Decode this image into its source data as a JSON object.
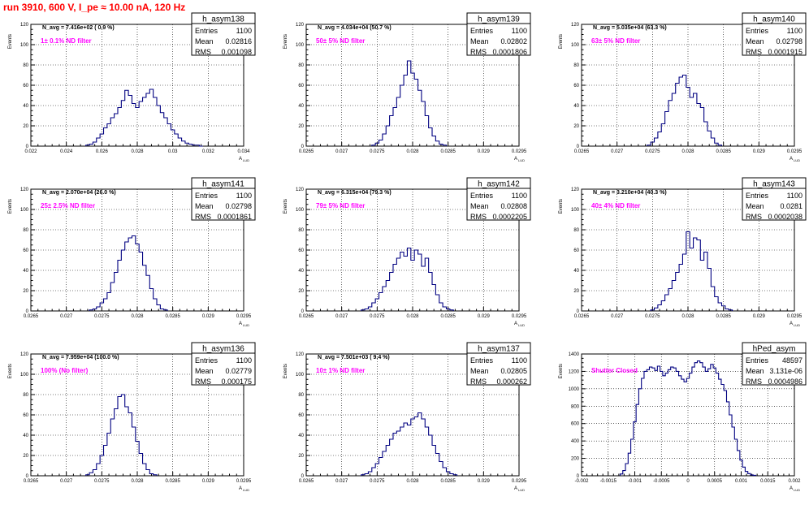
{
  "title": "run 3910,   600 V, I_pe ≈ 10.00 nA, 120 Hz",
  "common": {
    "ylabel": "Events",
    "xlabel": "A",
    "xlabel_sub": "LUD",
    "stat_labels": [
      "Entries",
      "Mean",
      "RMS"
    ],
    "line_color": "#000080",
    "note_color": "#ff00ff",
    "grid": true
  },
  "chart_data": [
    {
      "type": "histogram",
      "name": "h_asym138",
      "navg": "N_avg = 7.416e+02 ( 0.9 %)",
      "filter": "1± 0.1% ND filter",
      "entries": "1100",
      "mean": "0.02816",
      "rms": "0.001098",
      "xlim": [
        0.022,
        0.034
      ],
      "ylim": [
        0,
        120
      ],
      "xticks": [
        "0.022",
        "0.024",
        "0.026",
        "0.028",
        "0.03",
        "0.032",
        "0.034"
      ],
      "yticks": [
        "0",
        "20",
        "40",
        "60",
        "80",
        "100",
        "120"
      ],
      "x": [
        0.0252,
        0.0254,
        0.0256,
        0.0258,
        0.026,
        0.0262,
        0.0264,
        0.0266,
        0.0268,
        0.027,
        0.0272,
        0.0274,
        0.0276,
        0.0278,
        0.028,
        0.0282,
        0.0284,
        0.0286,
        0.0288,
        0.029,
        0.0292,
        0.0294,
        0.0296,
        0.0298,
        0.03,
        0.0302,
        0.0304,
        0.0306,
        0.0308,
        0.031,
        0.0312,
        0.0314,
        0.0316
      ],
      "values": [
        1,
        2,
        4,
        8,
        12,
        18,
        22,
        28,
        32,
        38,
        45,
        55,
        50,
        42,
        38,
        44,
        48,
        52,
        56,
        48,
        40,
        33,
        28,
        22,
        16,
        12,
        8,
        5,
        3,
        2,
        1,
        1,
        0
      ]
    },
    {
      "type": "histogram",
      "name": "h_asym139",
      "navg": "N_avg = 4.034e+04 (50.7 %)",
      "filter": "50± 5% ND filter",
      "entries": "1100",
      "mean": "0.02802",
      "rms": "0.0001806",
      "xlim": [
        0.0265,
        0.0295
      ],
      "ylim": [
        0,
        120
      ],
      "xticks": [
        "0.0265",
        "0.027",
        "0.0275",
        "0.028",
        "0.0285",
        "0.029",
        "0.0295"
      ],
      "yticks": [
        "0",
        "20",
        "40",
        "60",
        "80",
        "100",
        "120"
      ],
      "x": [
        0.02745,
        0.0275,
        0.02755,
        0.0276,
        0.02765,
        0.0277,
        0.02775,
        0.0278,
        0.02785,
        0.0279,
        0.02795,
        0.028,
        0.02805,
        0.0281,
        0.02815,
        0.0282,
        0.02825,
        0.0283,
        0.02835,
        0.0284,
        0.02845
      ],
      "values": [
        1,
        3,
        6,
        12,
        20,
        30,
        38,
        48,
        60,
        70,
        84,
        72,
        66,
        55,
        44,
        30,
        18,
        10,
        5,
        2,
        1
      ]
    },
    {
      "type": "histogram",
      "name": "h_asym140",
      "navg": "N_avg = 5.035e+04 (63.3 %)",
      "filter": "63± 5% ND filter",
      "entries": "1100",
      "mean": "0.02798",
      "rms": "0.0001915",
      "xlim": [
        0.0265,
        0.0295
      ],
      "ylim": [
        0,
        120
      ],
      "xticks": [
        "0.0265",
        "0.027",
        "0.0275",
        "0.028",
        "0.0285",
        "0.029",
        "0.0295"
      ],
      "yticks": [
        "0",
        "20",
        "40",
        "60",
        "80",
        "100",
        "120"
      ],
      "x": [
        0.02745,
        0.0275,
        0.02755,
        0.0276,
        0.02765,
        0.0277,
        0.02775,
        0.0278,
        0.02785,
        0.0279,
        0.02795,
        0.028,
        0.02805,
        0.0281,
        0.02815,
        0.0282,
        0.02825,
        0.0283,
        0.02835,
        0.0284,
        0.02845
      ],
      "values": [
        1,
        4,
        8,
        14,
        22,
        34,
        45,
        52,
        62,
        68,
        70,
        58,
        48,
        52,
        42,
        38,
        24,
        15,
        8,
        3,
        1
      ]
    },
    {
      "type": "histogram",
      "name": "h_asym141",
      "navg": "N_avg = 2.070e+04 (26.0 %)",
      "filter": "25± 2.5% ND filter",
      "entries": "1100",
      "mean": "0.02798",
      "rms": "0.0001861",
      "xlim": [
        0.0265,
        0.0295
      ],
      "ylim": [
        0,
        120
      ],
      "xticks": [
        "0.0265",
        "0.027",
        "0.0275",
        "0.028",
        "0.0285",
        "0.029",
        "0.0295"
      ],
      "yticks": [
        "0",
        "20",
        "40",
        "60",
        "80",
        "100",
        "120"
      ],
      "x": [
        0.02735,
        0.0274,
        0.02745,
        0.0275,
        0.02755,
        0.0276,
        0.02765,
        0.0277,
        0.02775,
        0.0278,
        0.02785,
        0.0279,
        0.02795,
        0.028,
        0.02805,
        0.0281,
        0.02815,
        0.0282,
        0.02825,
        0.0283,
        0.02835,
        0.0284
      ],
      "values": [
        1,
        2,
        4,
        8,
        12,
        18,
        28,
        38,
        50,
        60,
        68,
        72,
        74,
        66,
        58,
        45,
        35,
        22,
        12,
        6,
        2,
        1
      ]
    },
    {
      "type": "histogram",
      "name": "h_asym142",
      "navg": "N_avg = 6.315e+04 (79.3 %)",
      "filter": "79± 5% ND filter",
      "entries": "1100",
      "mean": "0.02808",
      "rms": "0.0002205",
      "xlim": [
        0.0265,
        0.0295
      ],
      "ylim": [
        0,
        120
      ],
      "xticks": [
        "0.0265",
        "0.027",
        "0.0275",
        "0.028",
        "0.0285",
        "0.029",
        "0.0295"
      ],
      "yticks": [
        "0",
        "20",
        "40",
        "60",
        "80",
        "100",
        "120"
      ],
      "x": [
        0.0273,
        0.02735,
        0.0274,
        0.02745,
        0.0275,
        0.02755,
        0.0276,
        0.02765,
        0.0277,
        0.02775,
        0.0278,
        0.02785,
        0.0279,
        0.02795,
        0.028,
        0.02805,
        0.0281,
        0.02815,
        0.0282,
        0.02825,
        0.0283,
        0.02835,
        0.0284,
        0.02845,
        0.0285,
        0.02855
      ],
      "values": [
        1,
        2,
        4,
        8,
        12,
        18,
        24,
        30,
        38,
        46,
        52,
        58,
        54,
        62,
        50,
        60,
        56,
        44,
        52,
        38,
        26,
        16,
        8,
        4,
        2,
        1
      ]
    },
    {
      "type": "histogram",
      "name": "h_asym143",
      "navg": "N_avg = 3.210e+04 (40.3 %)",
      "filter": "40± 4% ND filter",
      "entries": "1100",
      "mean": "0.0281",
      "rms": "0.0002038",
      "xlim": [
        0.0265,
        0.0295
      ],
      "ylim": [
        0,
        120
      ],
      "xticks": [
        "0.0265",
        "0.027",
        "0.0275",
        "0.028",
        "0.0285",
        "0.029",
        "0.0295"
      ],
      "yticks": [
        "0",
        "20",
        "40",
        "60",
        "80",
        "100",
        "120"
      ],
      "x": [
        0.0275,
        0.02755,
        0.0276,
        0.02765,
        0.0277,
        0.02775,
        0.0278,
        0.02785,
        0.0279,
        0.02795,
        0.028,
        0.02805,
        0.0281,
        0.02815,
        0.0282,
        0.02825,
        0.0283,
        0.02835,
        0.0284,
        0.02845,
        0.0285,
        0.02855,
        0.0286
      ],
      "values": [
        1,
        3,
        6,
        10,
        16,
        22,
        30,
        38,
        46,
        56,
        78,
        62,
        72,
        70,
        50,
        58,
        42,
        24,
        14,
        8,
        5,
        2,
        1
      ]
    },
    {
      "type": "histogram",
      "name": "h_asym136",
      "navg": "N_avg = 7.959e+04 (100.0 %)",
      "filter": "100% (No filter)",
      "entries": "1100",
      "mean": "0.02779",
      "rms": "0.000175",
      "xlim": [
        0.0265,
        0.0295
      ],
      "ylim": [
        0,
        120
      ],
      "xticks": [
        "0.0265",
        "0.027",
        "0.0275",
        "0.028",
        "0.0285",
        "0.029",
        "0.0295"
      ],
      "yticks": [
        "0",
        "20",
        "40",
        "60",
        "80",
        "100",
        "120"
      ],
      "x": [
        0.0273,
        0.02735,
        0.0274,
        0.02745,
        0.0275,
        0.02755,
        0.0276,
        0.02765,
        0.0277,
        0.02775,
        0.0278,
        0.02785,
        0.0279,
        0.02795,
        0.028,
        0.02805,
        0.0281,
        0.02815,
        0.0282,
        0.02825
      ],
      "values": [
        1,
        3,
        6,
        12,
        20,
        30,
        42,
        56,
        66,
        78,
        80,
        68,
        62,
        48,
        34,
        22,
        12,
        6,
        2,
        1
      ]
    },
    {
      "type": "histogram",
      "name": "h_asym137",
      "navg": "N_avg = 7.501e+03 ( 9.4 %)",
      "filter": "10± 1% ND filter",
      "entries": "1100",
      "mean": "0.02805",
      "rms": "0.000262",
      "xlim": [
        0.0265,
        0.0295
      ],
      "ylim": [
        0,
        120
      ],
      "xticks": [
        "0.0265",
        "0.027",
        "0.0275",
        "0.028",
        "0.0285",
        "0.029",
        "0.0295"
      ],
      "yticks": [
        "0",
        "20",
        "40",
        "60",
        "80",
        "100",
        "120"
      ],
      "x": [
        0.0273,
        0.02735,
        0.0274,
        0.02745,
        0.0275,
        0.02755,
        0.0276,
        0.02765,
        0.0277,
        0.02775,
        0.0278,
        0.02785,
        0.0279,
        0.02795,
        0.028,
        0.02805,
        0.0281,
        0.02815,
        0.0282,
        0.02825,
        0.0283,
        0.02835,
        0.0284,
        0.02845,
        0.0285,
        0.02855,
        0.0286
      ],
      "values": [
        1,
        2,
        4,
        8,
        12,
        18,
        24,
        30,
        36,
        42,
        44,
        48,
        52,
        50,
        56,
        58,
        62,
        56,
        48,
        40,
        30,
        22,
        14,
        8,
        4,
        2,
        1
      ]
    },
    {
      "type": "histogram",
      "name": "hPed_asym",
      "navg": "",
      "filter": "Shutter Closed",
      "entries": "48597",
      "mean": "3.131e-06",
      "rms": "0.0004986",
      "xlim": [
        -0.002,
        0.002
      ],
      "ylim": [
        0,
        1400
      ],
      "xticks": [
        "-0.002",
        "-0.0015",
        "-0.001",
        "-0.0005",
        "0",
        "0.0005",
        "0.001",
        "0.0015",
        "0.002"
      ],
      "yticks": [
        "0",
        "200",
        "400",
        "600",
        "800",
        "1000",
        "1200",
        "1400"
      ],
      "x": [
        -0.00125,
        -0.0012,
        -0.00115,
        -0.0011,
        -0.00105,
        -0.001,
        -0.00095,
        -0.0009,
        -0.00085,
        -0.0008,
        -0.00075,
        -0.0007,
        -0.00065,
        -0.0006,
        -0.00055,
        -0.0005,
        -0.00045,
        -0.0004,
        -0.00035,
        -0.0003,
        -0.00025,
        -0.0002,
        -0.00015,
        -0.0001,
        -5e-05,
        0,
        5e-05,
        0.0001,
        0.00015,
        0.0002,
        0.00025,
        0.0003,
        0.00035,
        0.0004,
        0.00045,
        0.0005,
        0.00055,
        0.0006,
        0.00065,
        0.0007,
        0.00075,
        0.0008,
        0.00085,
        0.0009,
        0.00095,
        0.001,
        0.00105,
        0.0011,
        0.00115,
        0.0012,
        0.00125
      ],
      "values": [
        20,
        60,
        140,
        260,
        420,
        620,
        820,
        1000,
        1120,
        1200,
        1220,
        1250,
        1240,
        1210,
        1260,
        1200,
        1150,
        1180,
        1220,
        1250,
        1240,
        1200,
        1150,
        1110,
        1080,
        1120,
        1180,
        1250,
        1300,
        1320,
        1300,
        1250,
        1200,
        1230,
        1280,
        1240,
        1180,
        1110,
        1050,
        980,
        850,
        700,
        560,
        420,
        290,
        180,
        100,
        50,
        25,
        10,
        5
      ]
    }
  ]
}
